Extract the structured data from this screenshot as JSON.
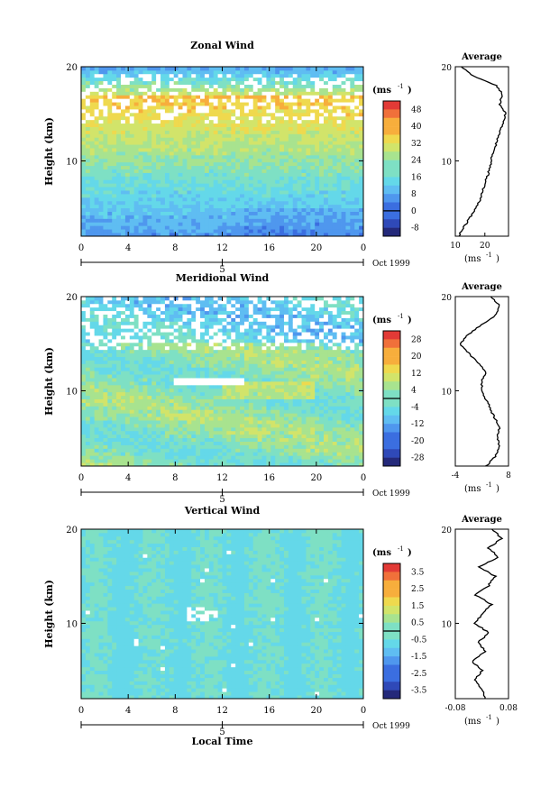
{
  "colors": {
    "palette": [
      "#24297a",
      "#2f49b8",
      "#3b6ee0",
      "#4f97ee",
      "#5fbdf2",
      "#64d8e9",
      "#7ee0c4",
      "#a8e38f",
      "#d2e46a",
      "#efd94e",
      "#f7ae3c",
      "#f0703a",
      "#e23a36"
    ]
  },
  "chart_data": [
    {
      "id": "zonal",
      "type": "heatmap",
      "title": "Zonal Wind",
      "ylabel": "Height (km)",
      "x_ticks": [
        "0",
        "4",
        "8",
        "12",
        "16",
        "20",
        "0"
      ],
      "x_range": [
        0,
        24
      ],
      "y_ticks": [
        "10",
        "20"
      ],
      "y_range": [
        2,
        20
      ],
      "date_tick": "5",
      "date_label": "Oct 1999",
      "unit": "(ms",
      "unit_exp": "-1",
      "colorbar_ticks": [
        "48",
        "40",
        "32",
        "24",
        "16",
        "8",
        "0",
        "-8"
      ],
      "colorbar_range": [
        -12,
        52
      ],
      "colorbar_contour": 0,
      "profile": {
        "title": "Average",
        "x_ticks": [
          "10",
          "20"
        ],
        "x_range": [
          10,
          28
        ],
        "y_ticks": [
          "10",
          "20"
        ],
        "xlabel": "(ms",
        "xlabel_exp": "-1",
        "points": [
          [
            11,
            2
          ],
          [
            13,
            3
          ],
          [
            15,
            4
          ],
          [
            17,
            5
          ],
          [
            18.5,
            6
          ],
          [
            19.5,
            7
          ],
          [
            20.5,
            8
          ],
          [
            21.5,
            9
          ],
          [
            22,
            10
          ],
          [
            23,
            11
          ],
          [
            24,
            12
          ],
          [
            25,
            13
          ],
          [
            26,
            14
          ],
          [
            27,
            15
          ],
          [
            25,
            16
          ],
          [
            26,
            17
          ],
          [
            24,
            18
          ],
          [
            16,
            19
          ],
          [
            12,
            20
          ]
        ]
      }
    },
    {
      "id": "meridional",
      "type": "heatmap",
      "title": "Meridional Wind",
      "ylabel": "Height (km)",
      "x_ticks": [
        "0",
        "4",
        "8",
        "12",
        "16",
        "20",
        "0"
      ],
      "x_range": [
        0,
        24
      ],
      "y_ticks": [
        "10",
        "20"
      ],
      "y_range": [
        2,
        20
      ],
      "date_tick": "5",
      "date_label": "Oct 1999",
      "unit": "(ms",
      "unit_exp": "-1",
      "colorbar_ticks": [
        "28",
        "20",
        "12",
        "4",
        "-4",
        "-12",
        "-20",
        "-28"
      ],
      "colorbar_range": [
        -32,
        32
      ],
      "colorbar_contour": 0,
      "profile": {
        "title": "Average",
        "x_ticks": [
          "-4",
          "8"
        ],
        "x_range": [
          -4,
          8
        ],
        "y_ticks": [
          "10",
          "20"
        ],
        "xlabel": "(ms",
        "xlabel_exp": "-1",
        "points": [
          [
            3,
            2
          ],
          [
            5,
            3
          ],
          [
            6,
            4
          ],
          [
            5.5,
            5
          ],
          [
            6,
            6
          ],
          [
            5,
            7
          ],
          [
            4,
            8
          ],
          [
            3,
            9
          ],
          [
            2,
            10
          ],
          [
            2,
            11
          ],
          [
            3,
            12
          ],
          [
            1,
            13
          ],
          [
            -1,
            14
          ],
          [
            -3,
            15
          ],
          [
            -1,
            16
          ],
          [
            2,
            17
          ],
          [
            5,
            18
          ],
          [
            6,
            19
          ],
          [
            4,
            20
          ]
        ]
      }
    },
    {
      "id": "vertical",
      "type": "heatmap",
      "title": "Vertical Wind",
      "ylabel": "Height (km)",
      "xlabel": "Local Time",
      "x_ticks": [
        "0",
        "4",
        "8",
        "12",
        "16",
        "20",
        "0"
      ],
      "x_range": [
        0,
        24
      ],
      "y_ticks": [
        "10",
        "20"
      ],
      "y_range": [
        2,
        20
      ],
      "date_tick": "5",
      "date_label": "Oct 1999",
      "unit": "(ms",
      "unit_exp": "-1",
      "colorbar_ticks": [
        "3.5",
        "2.5",
        "1.5",
        "0.5",
        "-0.5",
        "-1.5",
        "-2.5",
        "-3.5"
      ],
      "colorbar_range": [
        -4,
        4
      ],
      "colorbar_contour": 0,
      "profile": {
        "title": "Average",
        "x_ticks": [
          "-0.08",
          "0.08"
        ],
        "x_range": [
          -0.08,
          0.08
        ],
        "y_ticks": [
          "10",
          "20"
        ],
        "xlabel": "(ms",
        "xlabel_exp": "-1",
        "points": [
          [
            0.01,
            2
          ],
          [
            0.0,
            3
          ],
          [
            -0.02,
            4
          ],
          [
            0.0,
            5
          ],
          [
            -0.03,
            6
          ],
          [
            0.01,
            7
          ],
          [
            -0.01,
            8
          ],
          [
            0.02,
            9
          ],
          [
            -0.02,
            10
          ],
          [
            0.0,
            11
          ],
          [
            0.03,
            12
          ],
          [
            -0.02,
            13
          ],
          [
            0.02,
            14
          ],
          [
            0.04,
            15
          ],
          [
            -0.01,
            16
          ],
          [
            0.05,
            17
          ],
          [
            0.02,
            18
          ],
          [
            0.06,
            19
          ],
          [
            0.03,
            20
          ]
        ]
      }
    }
  ]
}
